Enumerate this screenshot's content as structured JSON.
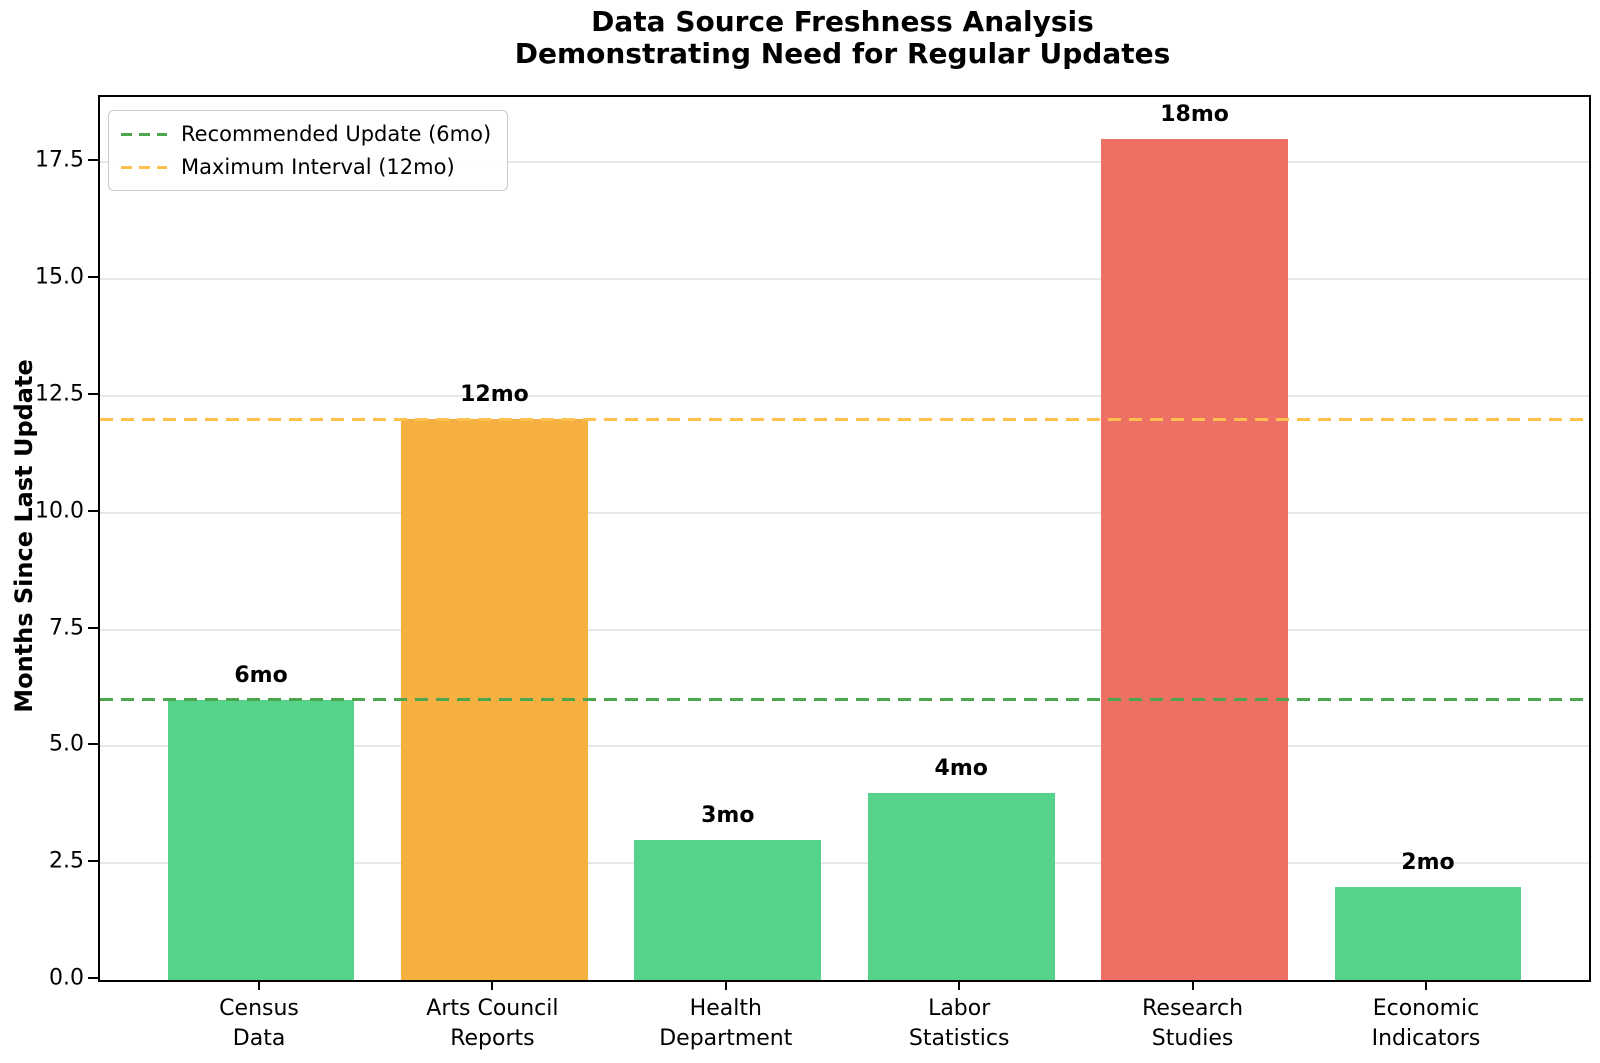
{
  "chart_data": {
    "type": "bar",
    "title": "Data Source Freshness Analysis\nDemonstrating Need for Regular Updates",
    "ylabel": "Months Since Last Update",
    "xlabel": "",
    "categories": [
      "Census\nData",
      "Arts Council\nReports",
      "Health\nDepartment",
      "Labor\nStatistics",
      "Research\nStudies",
      "Economic\nIndicators"
    ],
    "values": [
      6,
      12,
      3,
      4,
      18,
      2
    ],
    "bar_labels": [
      "6mo",
      "12mo",
      "3mo",
      "4mo",
      "18mo",
      "2mo"
    ],
    "bar_colors": [
      "#55d38a",
      "#f5b041",
      "#55d38a",
      "#55d38a",
      "#ec7063",
      "#55d38a"
    ],
    "status_colors": {
      "fresh": "#55d38a",
      "warning": "#f5b041",
      "overdue": "#ec7063"
    },
    "ylim": [
      0,
      18.9
    ],
    "yticks": [
      {
        "value": 0.0,
        "label": "0.0"
      },
      {
        "value": 2.5,
        "label": "2.5"
      },
      {
        "value": 5.0,
        "label": "5.0"
      },
      {
        "value": 7.5,
        "label": "7.5"
      },
      {
        "value": 10.0,
        "label": "10.0"
      },
      {
        "value": 12.5,
        "label": "12.5"
      },
      {
        "value": 15.0,
        "label": "15.0"
      },
      {
        "value": 17.5,
        "label": "17.5"
      }
    ],
    "grid": "horizontal",
    "grid_color": "#e7e7e7",
    "legend_position": "upper-left",
    "ref_lines": [
      {
        "value": 6,
        "label": "Recommended Update (6mo)",
        "color": "#4da64d"
      },
      {
        "value": 12,
        "label": "Maximum Interval (12mo)",
        "color": "#ffc04d"
      }
    ]
  }
}
